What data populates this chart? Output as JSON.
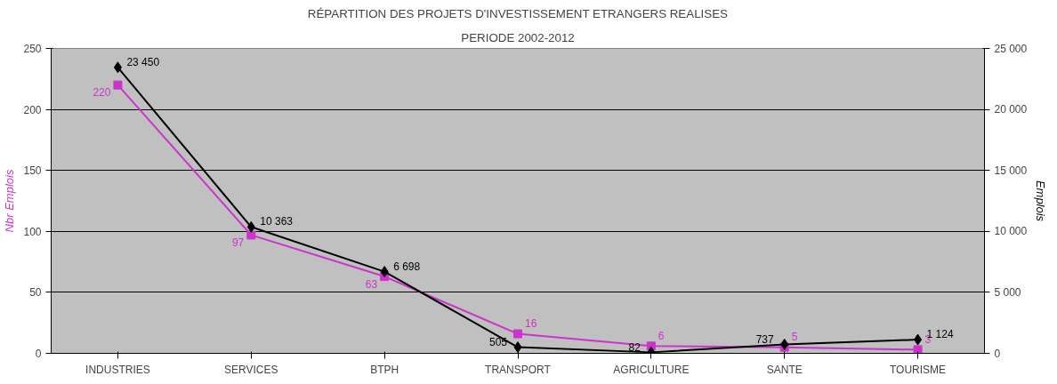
{
  "chart_data": {
    "type": "line",
    "title": "RÉPARTITION DES PROJETS D'INVESTISSEMENT ETRANGERS REALISES",
    "subtitle": "PERIODE 2002-2012",
    "ylabel": "Nbr Emplois",
    "y2label": "Emplois",
    "categories": [
      "INDUSTRIES",
      "SERVICES",
      "BTPH",
      "TRANSPORT",
      "AGRICULTURE",
      "SANTE",
      "TOURISME"
    ],
    "ylim": [
      0,
      250
    ],
    "yticks": [
      0,
      50,
      100,
      150,
      200,
      250
    ],
    "y2lim": [
      0,
      25000
    ],
    "y2ticks": [
      0,
      {
        "value": 5000,
        "label": "5 000"
      },
      {
        "value": 10000,
        "label": "10 000"
      },
      {
        "value": 15000,
        "label": "15 000"
      },
      {
        "value": 20000,
        "label": "20 000"
      },
      {
        "value": 25000,
        "label": "25 000"
      }
    ],
    "grid": "y",
    "series": [
      {
        "color": "#cc33cc",
        "marker": "square",
        "values": [
          220,
          97,
          63,
          16,
          6,
          5,
          3
        ],
        "value_labels": [
          "220",
          "97",
          "63",
          "16",
          "6",
          "5",
          "3"
        ]
      },
      {
        "color": "#000000",
        "marker": "diamond",
        "axis": "y2",
        "values": [
          23450,
          10363,
          6698,
          505,
          82,
          737,
          1124
        ],
        "value_labels": [
          "23 450",
          "10 363",
          "6 698",
          "505",
          "82",
          "737",
          "1 124"
        ]
      }
    ]
  }
}
